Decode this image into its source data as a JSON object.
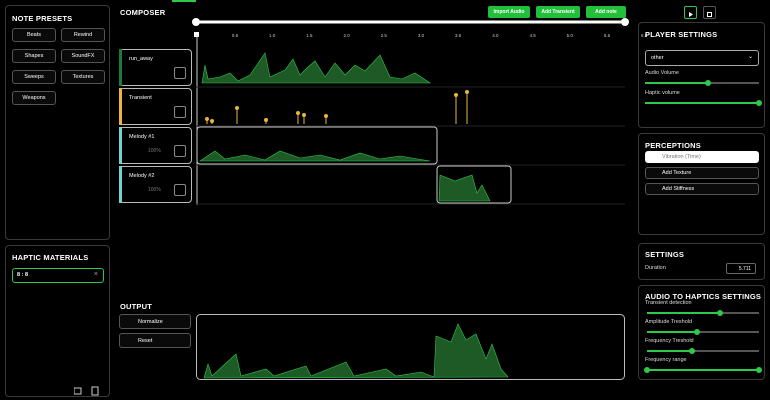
{
  "left": {
    "presets_title": "NOTE PRESETS",
    "presets": [
      "Beats",
      "Rewind",
      "Shapes",
      "SoundFX",
      "Sweeps",
      "Textures",
      "Weapons"
    ],
    "materials_title": "HAPTIC MATERIALS",
    "material_input": "8 : 8"
  },
  "composer": {
    "title": "COMPOSER",
    "buttons": [
      "Import Audio",
      "Add Transient",
      "Add note"
    ],
    "timeline": [
      "0.5",
      "1.0",
      "1.5",
      "2.0",
      "2.5",
      "3.0",
      "3.5",
      "4.0",
      "4.5",
      "5.0",
      "5.5",
      "6.0"
    ],
    "tracks": [
      {
        "name": "run_away"
      },
      {
        "name": "Transient"
      },
      {
        "name": "Melody #1",
        "percent": "100%"
      },
      {
        "name": "Melody #2",
        "percent": "100%"
      }
    ]
  },
  "output": {
    "title": "OUTPUT",
    "buttons": [
      "Normalize",
      "Reset"
    ]
  },
  "right": {
    "player_title": "PLAYER SETTINGS",
    "select": "other",
    "audio_volume": "Audio Volume",
    "haptic_volume": "Haptic volume",
    "perceptions_title": "PERCEPTIONS",
    "perceptions": [
      "Vibration (Time)",
      "Add Texture",
      "Add Stiffness"
    ],
    "settings_title": "SETTINGS",
    "duration_label": "Duration",
    "duration_value": "5.711",
    "a2h_title": "AUDIO TO HAPTICS SETTINGS",
    "a2h": [
      "Transient detection",
      "Amplitude Treshold",
      "Frequency Treshold",
      "Frequency range"
    ]
  }
}
